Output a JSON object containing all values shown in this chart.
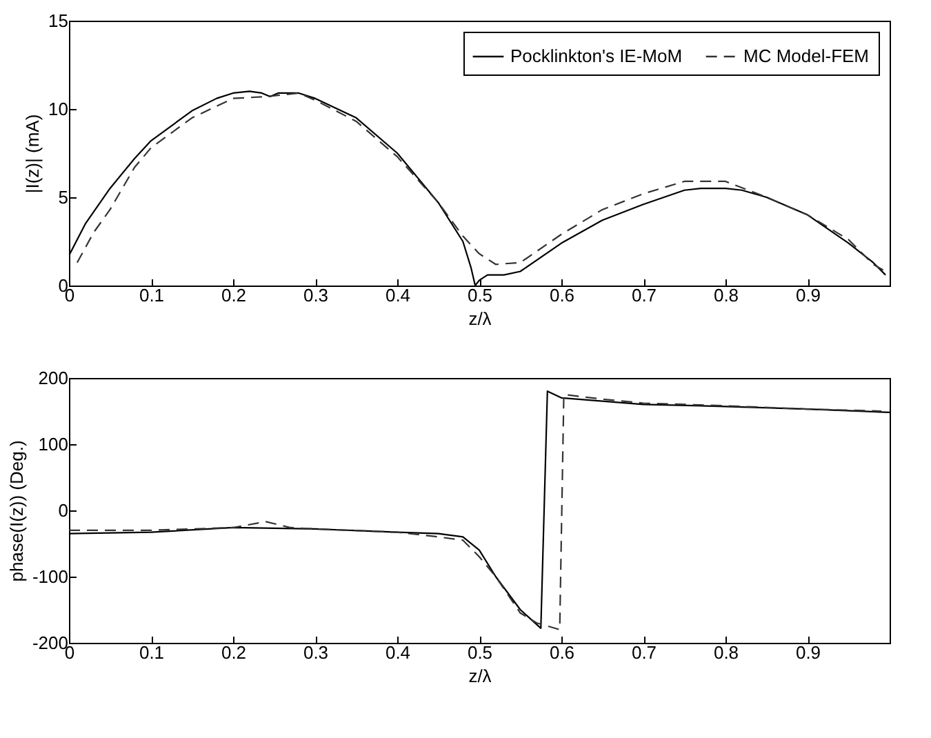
{
  "chart_data": [
    {
      "type": "line",
      "xlabel": "z/λ",
      "ylabel": "|I(z)| (mA)",
      "xlim": [
        0,
        1
      ],
      "xticks": [
        0,
        0.1,
        0.2,
        0.3,
        0.4,
        0.5,
        0.6,
        0.7,
        0.8,
        0.9
      ],
      "ylim": [
        0,
        15
      ],
      "yticks": [
        0,
        5,
        10,
        15
      ],
      "legend": "top right",
      "grid": false,
      "series": [
        {
          "name": "Pocklinkton's IE-MoM",
          "color": "#000000",
          "line_style": "solid",
          "x": [
            0,
            0.02,
            0.05,
            0.08,
            0.1,
            0.15,
            0.18,
            0.2,
            0.22,
            0.235,
            0.245,
            0.255,
            0.28,
            0.3,
            0.35,
            0.4,
            0.45,
            0.48,
            0.49,
            0.495,
            0.5,
            0.51,
            0.53,
            0.55,
            0.6,
            0.65,
            0.7,
            0.75,
            0.77,
            0.8,
            0.82,
            0.85,
            0.9,
            0.95,
            0.98,
            0.995
          ],
          "values": [
            1.7,
            3.5,
            5.5,
            7.2,
            8.2,
            9.9,
            10.6,
            10.9,
            11.0,
            10.9,
            10.7,
            10.9,
            10.9,
            10.6,
            9.5,
            7.5,
            4.7,
            2.5,
            1.0,
            0,
            0.3,
            0.6,
            0.6,
            0.8,
            2.4,
            3.7,
            4.6,
            5.4,
            5.5,
            5.5,
            5.4,
            5.0,
            4.0,
            2.4,
            1.3,
            0.6
          ]
        },
        {
          "name": "MC Model-FEM",
          "color": "#333333",
          "line_style": "dashed",
          "x": [
            0.01,
            0.03,
            0.05,
            0.08,
            0.1,
            0.15,
            0.2,
            0.24,
            0.28,
            0.3,
            0.35,
            0.4,
            0.45,
            0.48,
            0.5,
            0.52,
            0.55,
            0.6,
            0.65,
            0.7,
            0.75,
            0.8,
            0.85,
            0.9,
            0.95,
            0.98,
            0.995
          ],
          "values": [
            1.3,
            3.0,
            4.3,
            6.7,
            7.8,
            9.5,
            10.6,
            10.7,
            10.9,
            10.5,
            9.3,
            7.3,
            4.7,
            2.8,
            1.8,
            1.2,
            1.3,
            2.9,
            4.3,
            5.2,
            5.9,
            5.9,
            5.0,
            4.0,
            2.6,
            1.2,
            0.8
          ]
        }
      ]
    },
    {
      "type": "line",
      "xlabel": "z/λ",
      "ylabel": "phase(I(z)) (Deg.)",
      "xlim": [
        0,
        1
      ],
      "xticks": [
        0,
        0.1,
        0.2,
        0.3,
        0.4,
        0.5,
        0.6,
        0.7,
        0.8,
        0.9
      ],
      "ylim": [
        -200,
        200
      ],
      "yticks": [
        -200,
        -100,
        0,
        100,
        200
      ],
      "grid": false,
      "series": [
        {
          "color": "#000000",
          "line_style": "solid",
          "x": [
            0,
            0.1,
            0.2,
            0.3,
            0.4,
            0.45,
            0.48,
            0.5,
            0.52,
            0.55,
            0.575,
            0.583,
            0.6,
            0.7,
            0.8,
            0.9,
            1.0
          ],
          "values": [
            -35,
            -33,
            -26,
            -28,
            -33,
            -35,
            -40,
            -60,
            -100,
            -150,
            -178,
            180,
            170,
            160,
            157,
            153,
            148
          ]
        },
        {
          "color": "#333333",
          "line_style": "dashed",
          "x": [
            0,
            0.1,
            0.2,
            0.24,
            0.27,
            0.3,
            0.4,
            0.45,
            0.48,
            0.5,
            0.52,
            0.55,
            0.57,
            0.598,
            0.603,
            0.65,
            0.7,
            0.8,
            0.9,
            0.99
          ],
          "values": [
            -30,
            -30,
            -26,
            -17,
            -26,
            -28,
            -33,
            -40,
            -45,
            -70,
            -100,
            -155,
            -170,
            -180,
            175,
            168,
            162,
            158,
            153,
            150
          ]
        }
      ]
    }
  ]
}
